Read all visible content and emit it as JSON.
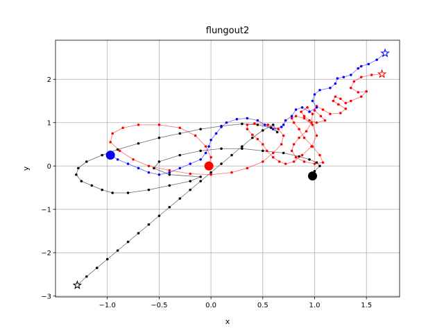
{
  "chart_data": {
    "type": "line",
    "title": "flungout2",
    "xlabel": "x",
    "ylabel": "y",
    "xlim": [
      -1.5,
      1.82
    ],
    "ylim": [
      -3.02,
      2.9
    ],
    "xticks": [
      -1.0,
      -0.5,
      0.0,
      0.5,
      1.0,
      1.5
    ],
    "xtick_labels": [
      "−1.0",
      "−0.5",
      "0.0",
      "0.5",
      "1.0",
      "1.5"
    ],
    "yticks": [
      -3,
      -2,
      -1,
      0,
      1,
      2
    ],
    "ytick_labels": [
      "−3",
      "−2",
      "−1",
      "0",
      "1",
      "2"
    ],
    "grid": true,
    "series": [
      {
        "color": "#000000",
        "start_marker": "star",
        "end_marker": "circle",
        "x": [
          -1.29,
          -1.2,
          -1.1,
          -1.0,
          -0.9,
          -0.8,
          -0.7,
          -0.6,
          -0.5,
          -0.4,
          -0.3,
          -0.2,
          -0.1,
          0.0,
          0.1,
          0.2,
          0.3,
          0.4,
          0.5,
          0.6,
          0.64,
          0.58,
          0.45,
          0.3,
          0.1,
          -0.1,
          -0.3,
          -0.5,
          -0.7,
          -0.9,
          -1.05,
          -1.2,
          -1.28,
          -1.3,
          -1.25,
          -1.15,
          -1.05,
          -0.95,
          -0.8,
          -0.6,
          -0.4,
          -0.2,
          -0.1,
          -0.4,
          -0.55,
          -0.5,
          -0.3,
          -0.1,
          0.1,
          0.3,
          0.5,
          0.7,
          0.85,
          0.95,
          1.02,
          1.05,
          1.0,
          0.98
        ],
        "y": [
          -2.75,
          -2.55,
          -2.35,
          -2.15,
          -1.95,
          -1.75,
          -1.55,
          -1.35,
          -1.15,
          -0.95,
          -0.75,
          -0.55,
          -0.35,
          -0.15,
          0.05,
          0.25,
          0.45,
          0.65,
          0.82,
          0.95,
          0.78,
          0.88,
          0.95,
          0.97,
          0.92,
          0.85,
          0.75,
          0.65,
          0.52,
          0.38,
          0.25,
          0.1,
          -0.05,
          -0.2,
          -0.35,
          -0.45,
          -0.55,
          -0.62,
          -0.62,
          -0.55,
          -0.45,
          -0.35,
          -0.25,
          -0.2,
          -0.05,
          0.1,
          0.25,
          0.35,
          0.4,
          0.4,
          0.35,
          0.3,
          0.22,
          0.15,
          0.08,
          0.0,
          -0.12,
          -0.23
        ]
      },
      {
        "color": "#ff0000",
        "start_marker": "star",
        "end_marker": "circle",
        "x": [
          1.65,
          1.55,
          1.45,
          1.38,
          1.35,
          1.42,
          1.5,
          1.45,
          1.35,
          1.3,
          1.25,
          1.2,
          1.18,
          1.23,
          1.3,
          1.25,
          1.15,
          1.08,
          1.02,
          1.0,
          1.06,
          1.1,
          1.02,
          0.95,
          0.9,
          0.87,
          0.93,
          0.98,
          0.97,
          0.92,
          0.85,
          0.8,
          0.78,
          0.82,
          0.9,
          1.0,
          1.08,
          1.05,
          0.98,
          0.9,
          0.85,
          0.8,
          0.78,
          0.82,
          0.9,
          0.98,
          1.02,
          0.97,
          0.88,
          0.8,
          0.72,
          0.66,
          0.6,
          0.54,
          0.5,
          0.45,
          0.4,
          0.35,
          0.35,
          0.42,
          0.55,
          0.65,
          0.7,
          0.68,
          0.6,
          0.5,
          0.35,
          0.2,
          0.0,
          -0.2,
          -0.4,
          -0.6,
          -0.75,
          -0.88,
          -0.97,
          -0.95,
          -0.85,
          -0.7,
          -0.5,
          -0.3,
          -0.15,
          -0.05,
          0.0,
          -0.02
        ],
        "y": [
          2.12,
          2.1,
          2.05,
          1.95,
          1.8,
          1.7,
          1.72,
          1.6,
          1.5,
          1.45,
          1.55,
          1.6,
          1.5,
          1.42,
          1.32,
          1.22,
          1.2,
          1.3,
          1.38,
          1.28,
          1.15,
          1.05,
          1.0,
          1.05,
          1.15,
          1.25,
          1.35,
          1.2,
          1.0,
          0.8,
          0.65,
          0.5,
          0.35,
          0.2,
          0.1,
          0.05,
          0.08,
          0.25,
          0.45,
          0.65,
          0.85,
          1.0,
          1.1,
          1.15,
          1.1,
          0.95,
          0.7,
          0.45,
          0.25,
          0.1,
          0.05,
          0.1,
          0.2,
          0.35,
          0.5,
          0.62,
          0.72,
          0.85,
          0.95,
          0.98,
          0.95,
          0.85,
          0.7,
          0.5,
          0.3,
          0.1,
          -0.05,
          -0.15,
          -0.2,
          -0.18,
          -0.1,
          0.0,
          0.15,
          0.35,
          0.55,
          0.75,
          0.88,
          0.95,
          0.95,
          0.88,
          0.7,
          0.45,
          0.2,
          0.0
        ]
      },
      {
        "color": "#0000ff",
        "start_marker": "star",
        "end_marker": "circle",
        "x": [
          1.68,
          1.6,
          1.52,
          1.45,
          1.42,
          1.35,
          1.28,
          1.22,
          1.2,
          1.15,
          1.05,
          1.0,
          0.98,
          1.02,
          0.95,
          0.88,
          0.82,
          0.78,
          0.72,
          0.7,
          0.68,
          0.6,
          0.52,
          0.45,
          0.35,
          0.25,
          0.15,
          0.1,
          0.05,
          0.0,
          -0.02,
          -0.05,
          -0.1,
          -0.2,
          -0.3,
          -0.4,
          -0.5,
          -0.6,
          -0.7,
          -0.8,
          -0.9,
          -0.97
        ],
        "y": [
          2.6,
          2.45,
          2.35,
          2.3,
          2.25,
          2.1,
          2.05,
          2.02,
          1.9,
          1.8,
          1.75,
          1.65,
          1.5,
          1.35,
          1.25,
          1.35,
          1.3,
          1.15,
          1.05,
          0.95,
          0.9,
          0.85,
          0.95,
          1.05,
          1.1,
          1.08,
          1.0,
          0.9,
          0.75,
          0.6,
          0.45,
          0.3,
          0.15,
          0.05,
          -0.05,
          -0.15,
          -0.2,
          -0.15,
          -0.05,
          0.05,
          0.15,
          0.25
        ]
      }
    ]
  }
}
